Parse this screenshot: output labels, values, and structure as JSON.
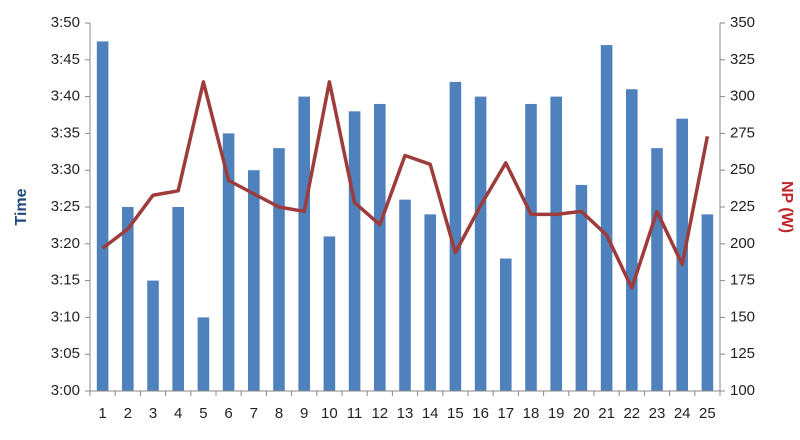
{
  "chart_data": {
    "type": "combo",
    "y_label": "Time",
    "y2_label": "NP (W)",
    "y_label_color": "#1f497d",
    "y2_label_color": "#c0262a",
    "categories": [
      "1",
      "2",
      "3",
      "4",
      "5",
      "6",
      "7",
      "8",
      "9",
      "10",
      "11",
      "12",
      "13",
      "14",
      "15",
      "16",
      "17",
      "18",
      "19",
      "20",
      "21",
      "22",
      "23",
      "24",
      "25"
    ],
    "series": [
      {
        "type": "bar",
        "color": "#4f81bd",
        "values": [
          227.5,
          205,
          195,
          205,
          190,
          215,
          210,
          213,
          220,
          201,
          218,
          219,
          206,
          204,
          222,
          220,
          198,
          219,
          220,
          208,
          227,
          221,
          213,
          217,
          204
        ]
      },
      {
        "type": "line",
        "axis": "y2",
        "color": "#9e3b3b",
        "values": [
          197,
          210,
          233,
          236,
          310,
          243,
          234,
          225,
          222,
          310,
          228,
          213,
          260,
          254,
          194,
          226,
          255,
          220,
          220,
          222,
          206,
          170,
          222,
          186,
          273
        ]
      }
    ],
    "ylim": [
      180,
      230
    ],
    "yticks": [
      {
        "value": 180,
        "label": "3:00"
      },
      {
        "value": 185,
        "label": "3:05"
      },
      {
        "value": 190,
        "label": "3:10"
      },
      {
        "value": 195,
        "label": "3:15"
      },
      {
        "value": 200,
        "label": "3:20"
      },
      {
        "value": 205,
        "label": "3:25"
      },
      {
        "value": 210,
        "label": "3:30"
      },
      {
        "value": 215,
        "label": "3:35"
      },
      {
        "value": 220,
        "label": "3:40"
      },
      {
        "value": 225,
        "label": "3:45"
      },
      {
        "value": 230,
        "label": "3:50"
      }
    ],
    "y2lim": [
      100,
      350
    ],
    "y2ticks": [
      100,
      125,
      150,
      175,
      200,
      225,
      250,
      275,
      300,
      325,
      350
    ]
  }
}
